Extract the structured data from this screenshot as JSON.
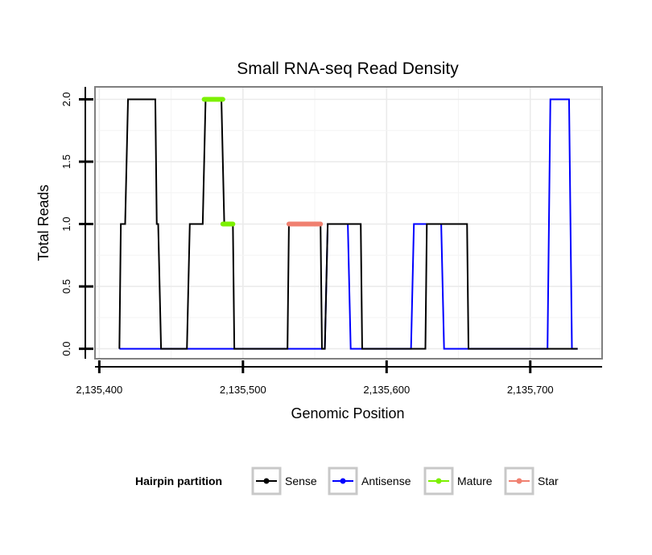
{
  "chart_data": {
    "type": "line",
    "title": "Small RNA-seq Read Density",
    "xlabel": "Genomic Position",
    "ylabel": "Total Reads",
    "xlim": [
      2135397,
      2135750
    ],
    "ylim": [
      -0.08,
      2.1
    ],
    "xticks": [
      2135400,
      2135500,
      2135600,
      2135700
    ],
    "xtick_labels": [
      "2,135,400",
      "2,135,500",
      "2,135,600",
      "2,135,700"
    ],
    "yticks": [
      0.0,
      0.5,
      1.0,
      1.5,
      2.0
    ],
    "ytick_labels": [
      "0.0",
      "0.5",
      "1.0",
      "1.5",
      "2.0"
    ],
    "grid": true,
    "legend_position": "bottom",
    "series": [
      {
        "name": "Sense",
        "color": "#000000",
        "x": [
          2135414,
          2135415,
          2135418,
          2135420,
          2135439,
          2135440,
          2135441,
          2135443,
          2135461,
          2135463,
          2135472,
          2135474,
          2135485,
          2135487,
          2135493,
          2135494,
          2135531,
          2135532,
          2135554,
          2135555,
          2135557,
          2135559,
          2135563,
          2135565,
          2135582,
          2135583,
          2135627,
          2135628,
          2135630,
          2135633,
          2135656,
          2135657,
          2135733
        ],
        "values": [
          0,
          1,
          1,
          2,
          2,
          1,
          1,
          0,
          0,
          1,
          1,
          2,
          2,
          1,
          1,
          0,
          0,
          1,
          1,
          0,
          0,
          1,
          1,
          1,
          1,
          0,
          0,
          1,
          1,
          1,
          1,
          0,
          0
        ]
      },
      {
        "name": "Antisense",
        "color": "#0000ff",
        "x": [
          2135414,
          2135557,
          2135559,
          2135573,
          2135575,
          2135617,
          2135619,
          2135638,
          2135640,
          2135712,
          2135714,
          2135727,
          2135729,
          2135733
        ],
        "values": [
          0,
          0,
          1,
          1,
          0,
          0,
          1,
          1,
          0,
          0,
          2,
          2,
          0,
          0
        ]
      },
      {
        "name": "Mature",
        "color": "#7cf000",
        "segments": [
          {
            "x": [
              2135473,
              2135486
            ],
            "values": [
              2,
              2
            ]
          },
          {
            "x": [
              2135486,
              2135493
            ],
            "values": [
              1,
              1
            ]
          }
        ]
      },
      {
        "name": "Star",
        "color": "#f08070",
        "segments": [
          {
            "x": [
              2135532,
              2135554
            ],
            "values": [
              1,
              1
            ]
          }
        ]
      }
    ]
  },
  "legend": {
    "title": "Hairpin partition",
    "items": [
      {
        "label": "Sense",
        "color": "#000000"
      },
      {
        "label": "Antisense",
        "color": "#0000ff"
      },
      {
        "label": "Mature",
        "color": "#7cf000"
      },
      {
        "label": "Star",
        "color": "#f08070"
      }
    ]
  }
}
